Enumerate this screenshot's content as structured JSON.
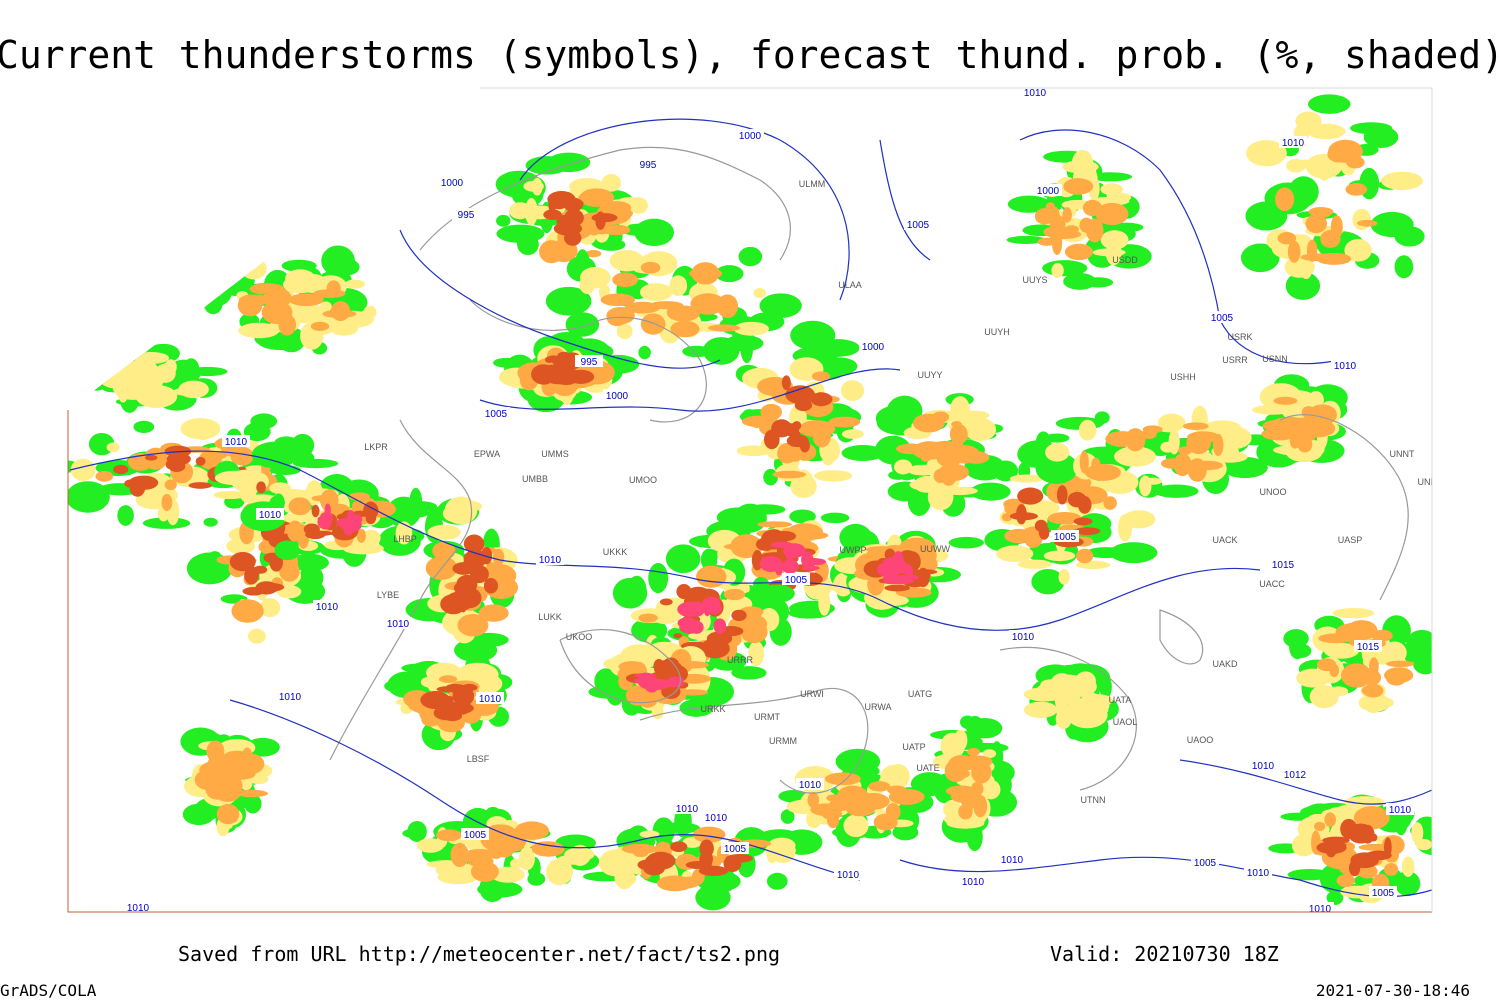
{
  "title": "Current thunderstorms (symbols), forecast thund. prob. (%, shaded)",
  "footer": {
    "saved": "Saved from URL http://meteocenter.net/fact/ts2.png",
    "valid": "Valid: 20210730 18Z",
    "credit": "GrADS/COLA",
    "timestamp": "2021-07-30-18:46"
  },
  "isobar_labels": [
    "1010",
    "1000",
    "995",
    "1000",
    "995",
    "1005",
    "1000",
    "1010",
    "1005",
    "1010",
    "1000",
    "995",
    "1000",
    "1005",
    "1010",
    "1010",
    "1010",
    "1005",
    "1005",
    "1015",
    "1010",
    "1015",
    "1010",
    "1010",
    "1010",
    "1010",
    "1010",
    "1012",
    "1010",
    "1010",
    "1010",
    "1005",
    "1005",
    "1010",
    "1010",
    "1010",
    "1005",
    "1010",
    "1010",
    "1005",
    "1010",
    "1010"
  ],
  "stations": [
    "ULAA",
    "UUYS",
    "UUYH",
    "UUYY",
    "USDD",
    "USRK",
    "USRR",
    "USNN",
    "USHH",
    "UNNT",
    "UNBB",
    "UNOO",
    "UACK",
    "UASP",
    "UACC",
    "UAKD",
    "UATA",
    "UAOL",
    "UAOO",
    "UTNN",
    "UATE",
    "UATP",
    "URWA",
    "URWI",
    "UATG",
    "URMT",
    "URMM",
    "URRR",
    "URKK",
    "UKOO",
    "LUKK",
    "UKKK",
    "UMMS",
    "EPWA",
    "UMBB",
    "UMOO",
    "LKPR",
    "LHBP",
    "LYBE",
    "LBSF",
    "ULMM",
    "UUWW",
    "UWPP"
  ]
}
